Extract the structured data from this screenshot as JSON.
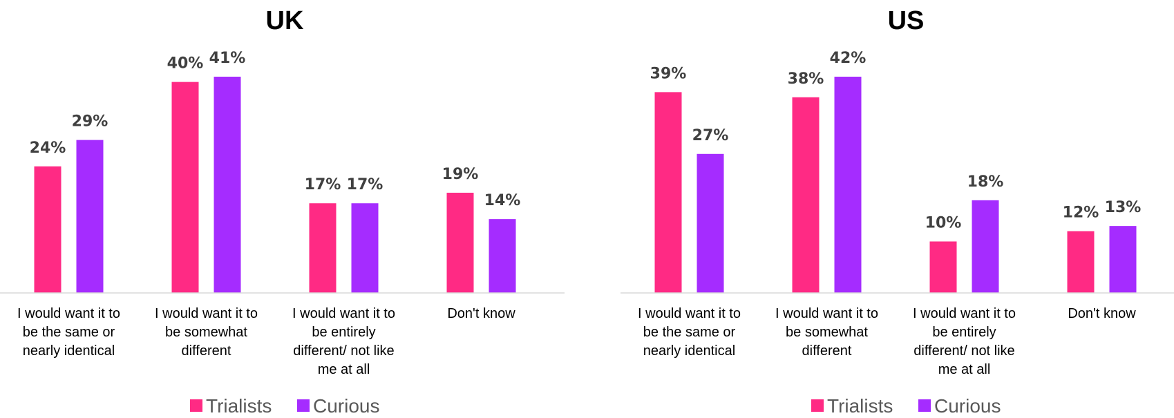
{
  "colors": {
    "trialists": "#ff2a84",
    "curious": "#a52cff"
  },
  "chart_data": [
    {
      "type": "bar",
      "title": "UK",
      "categories": [
        [
          "I would want it to",
          "be the same or",
          "nearly identical"
        ],
        [
          "I would want it to",
          "be somewhat",
          "different"
        ],
        [
          "I would want it to",
          "be entirely",
          "different/ not like",
          "me at all"
        ],
        [
          "Don't know"
        ]
      ],
      "series": [
        {
          "name": "Trialists",
          "values": [
            24,
            40,
            17,
            19
          ],
          "labels": [
            "24%",
            "40%",
            "17%",
            "19%"
          ]
        },
        {
          "name": "Curious",
          "values": [
            29,
            41,
            17,
            14
          ],
          "labels": [
            "29%",
            "41%",
            "17%",
            "14%"
          ]
        }
      ],
      "ylim": [
        0,
        41
      ],
      "legend": "bottom"
    },
    {
      "type": "bar",
      "title": "US",
      "categories": [
        [
          "I would want it to",
          "be the same or",
          "nearly identical"
        ],
        [
          "I would want it to",
          "be somewhat",
          "different"
        ],
        [
          "I would want it to",
          "be entirely",
          "different/ not like",
          "me at all"
        ],
        [
          "Don't know"
        ]
      ],
      "series": [
        {
          "name": "Trialists",
          "values": [
            39,
            38,
            10,
            12
          ],
          "labels": [
            "39%",
            "38%",
            "10%",
            "12%"
          ]
        },
        {
          "name": "Curious",
          "values": [
            27,
            42,
            18,
            13
          ],
          "labels": [
            "27%",
            "42%",
            "18%",
            "13%"
          ]
        }
      ],
      "ylim": [
        0,
        42
      ],
      "legend": "bottom"
    }
  ]
}
